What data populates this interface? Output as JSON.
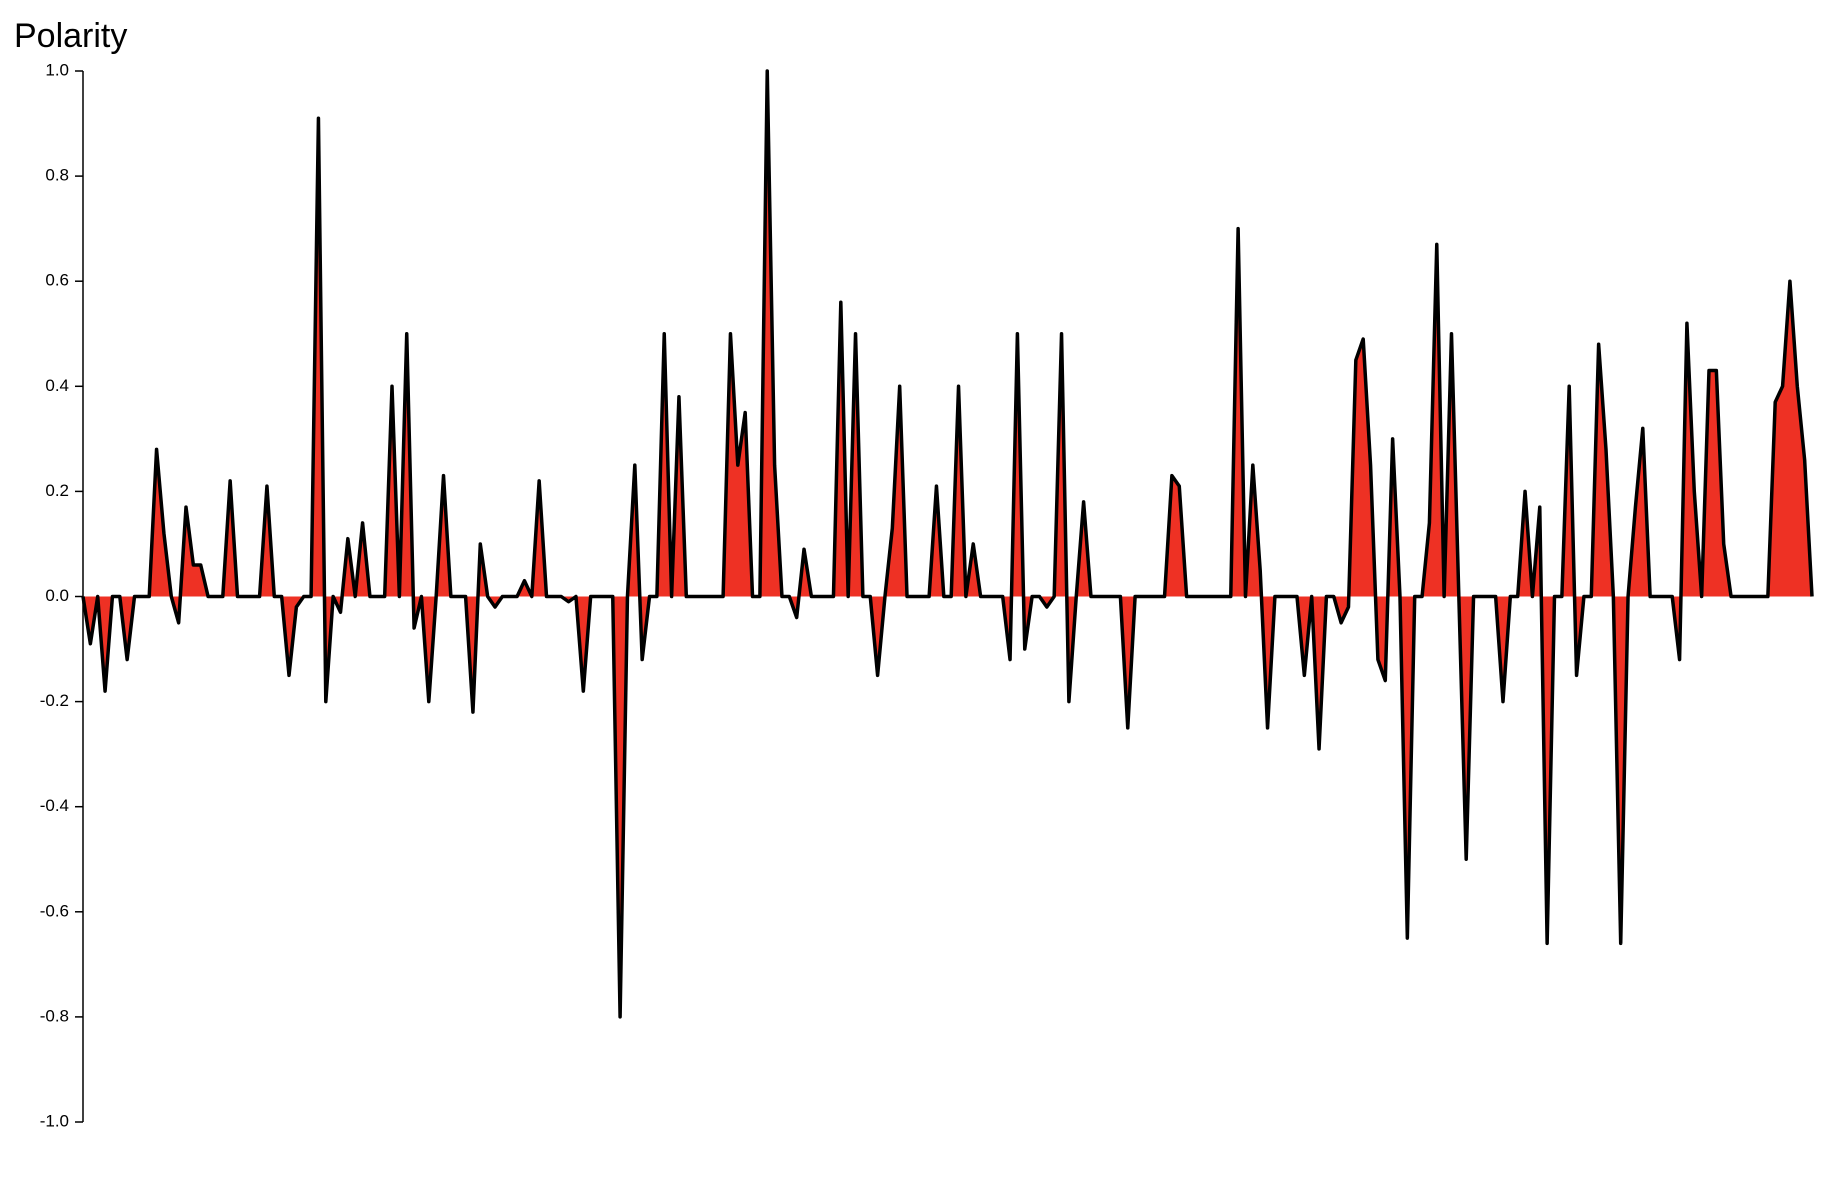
{
  "chart_data": {
    "type": "area",
    "title": "Polarity",
    "values": [
      0,
      -0.09,
      0,
      -0.18,
      0,
      0,
      -0.12,
      0,
      0,
      0,
      0.28,
      0.12,
      0,
      -0.05,
      0.17,
      0.06,
      0.06,
      0,
      0,
      0,
      0.22,
      0,
      0,
      0,
      0,
      0.21,
      0,
      0,
      -0.15,
      -0.02,
      0,
      0,
      0.91,
      -0.2,
      0,
      -0.03,
      0.11,
      0,
      0.14,
      0,
      0,
      0,
      0.4,
      0,
      0.5,
      -0.06,
      0,
      -0.2,
      0,
      0.23,
      0,
      0,
      0,
      -0.22,
      0.1,
      0,
      -0.02,
      0,
      0,
      0,
      0.03,
      0,
      0.22,
      0,
      0,
      0,
      -0.01,
      0,
      -0.18,
      0,
      0,
      0,
      0,
      -0.8,
      0,
      0.25,
      -0.12,
      0,
      0,
      0.5,
      0,
      0.38,
      0,
      0,
      0,
      0,
      0,
      0,
      0.5,
      0.25,
      0.35,
      0,
      0,
      1.0,
      0.25,
      0,
      0,
      -0.04,
      0.09,
      0,
      0,
      0,
      0,
      0.56,
      0,
      0.5,
      0,
      0,
      -0.15,
      0,
      0.13,
      0.4,
      0,
      0,
      0,
      0,
      0.21,
      0,
      0,
      0.4,
      0,
      0.1,
      0,
      0,
      0,
      0,
      -0.12,
      0.5,
      -0.1,
      0,
      0,
      -0.02,
      0,
      0.5,
      -0.2,
      0,
      0.18,
      0,
      0,
      0,
      0,
      0,
      -0.25,
      0,
      0,
      0,
      0,
      0,
      0.23,
      0.21,
      0,
      0,
      0,
      0,
      0,
      0,
      0,
      0.7,
      0,
      0.25,
      0.05,
      -0.25,
      0,
      0,
      0,
      0,
      -0.15,
      0,
      -0.29,
      0,
      0,
      -0.05,
      -0.02,
      0.45,
      0.49,
      0.25,
      -0.12,
      -0.16,
      0.3,
      0,
      -0.65,
      0,
      0,
      0.14,
      0.67,
      0,
      0.5,
      0,
      -0.5,
      0,
      0,
      0,
      0,
      -0.2,
      0,
      0,
      0.2,
      0,
      0.17,
      -0.66,
      0,
      0,
      0.4,
      -0.15,
      0,
      0,
      0.48,
      0.28,
      0,
      -0.66,
      0,
      0.17,
      0.32,
      0,
      0,
      0,
      0,
      -0.12,
      0.52,
      0.2,
      0,
      0.43,
      0.43,
      0.1,
      0,
      0,
      0,
      0,
      0,
      0,
      0.37,
      0.4,
      0.6,
      0.4,
      0.26,
      0
    ],
    "color": "#ee3124",
    "line_color": "#000000",
    "ylim": [
      -1,
      1
    ],
    "yticks": [
      {
        "value": -1,
        "label": "-1.0"
      },
      -0.8,
      -0.6,
      -0.4,
      -0.2,
      {
        "value": 0,
        "label": "0.0"
      },
      0.2,
      0.4,
      0.6,
      0.8,
      {
        "value": 1,
        "label": "1.0"
      }
    ]
  }
}
